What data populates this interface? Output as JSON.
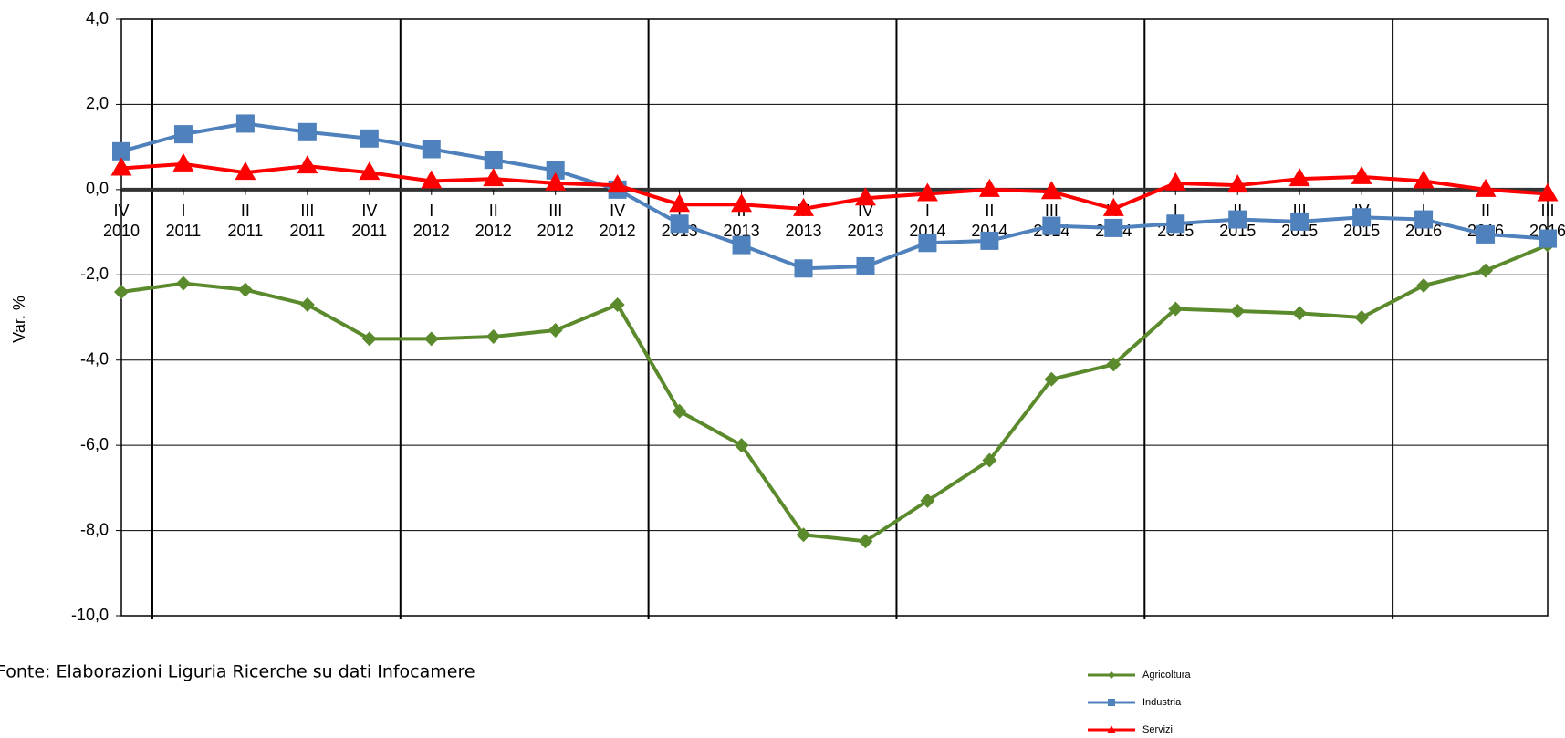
{
  "chart_data": {
    "type": "line",
    "y_label": "Var. %",
    "note": "Fonte: Elaborazioni Liguria Ricerche su dati Infocamere",
    "categories": [
      "IV 2010",
      "I 2011",
      "II 2011",
      "III 2011",
      "IV 2011",
      "I 2012",
      "II 2012",
      "III 2012",
      "IV 2012",
      "I 2013",
      "II 2013",
      "III 2013",
      "IV 2013",
      "I 2014",
      "II 2014",
      "III 2014",
      "IV 2014",
      "I 2015",
      "II 2015",
      "III 2015",
      "IV 2015",
      "I 2016",
      "II 2016",
      "III 2016"
    ],
    "series": [
      {
        "name": "Agricoltura",
        "color": "#5b8a2d",
        "marker": "diamond",
        "values": [
          -2.4,
          -2.2,
          -2.35,
          -2.7,
          -3.5,
          -3.5,
          -3.45,
          -3.3,
          -2.7,
          -5.2,
          -6.0,
          -8.1,
          -8.25,
          -7.3,
          -6.35,
          -4.45,
          -4.1,
          -2.8,
          -2.85,
          -2.9,
          -3.0,
          -2.25,
          -1.9,
          -1.3
        ]
      },
      {
        "name": "Industria",
        "color": "#4f81bd",
        "marker": "square",
        "values": [
          0.9,
          1.3,
          1.55,
          1.35,
          1.2,
          0.95,
          0.7,
          0.45,
          0.0,
          -0.8,
          -1.3,
          -1.85,
          -1.8,
          -1.25,
          -1.2,
          -0.85,
          -0.9,
          -0.8,
          -0.7,
          -0.75,
          -0.65,
          -0.7,
          -1.05,
          -1.15
        ]
      },
      {
        "name": "Servizi",
        "color": "#ff0000",
        "marker": "triangle",
        "values": [
          0.5,
          0.6,
          0.4,
          0.55,
          0.4,
          0.2,
          0.25,
          0.15,
          0.1,
          -0.35,
          -0.35,
          -0.45,
          -0.2,
          -0.1,
          0.0,
          -0.05,
          -0.45,
          0.15,
          0.1,
          0.25,
          0.3,
          0.2,
          0.0,
          -0.1
        ]
      }
    ],
    "ylim": [
      -10,
      4
    ],
    "yticks": [
      {
        "value": -10,
        "label": "-10,0"
      },
      {
        "value": -8,
        "label": "-8,0"
      },
      {
        "value": -6,
        "label": "-6,0"
      },
      {
        "value": -4,
        "label": "-4,0"
      },
      {
        "value": -2,
        "label": "-2,0"
      },
      {
        "value": 0,
        "label": "0,0"
      },
      {
        "value": 2,
        "label": "2,0"
      },
      {
        "value": 4,
        "label": "4,0"
      }
    ],
    "grid": true
  }
}
